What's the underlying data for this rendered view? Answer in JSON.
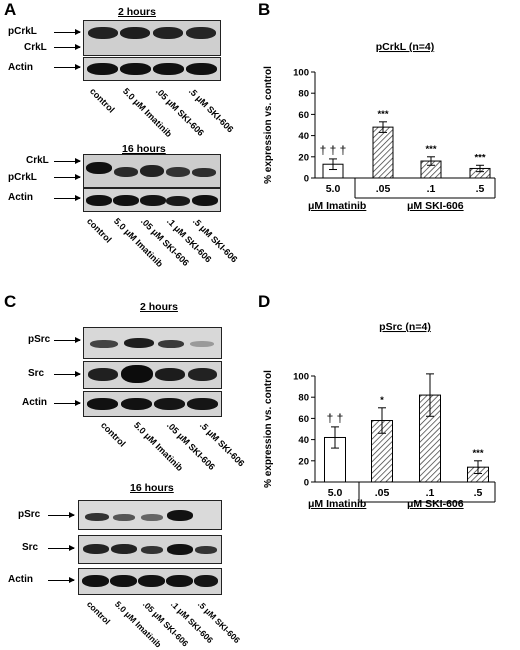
{
  "panel_A": {
    "letter": "A",
    "blot_2h": {
      "time_label": "2 hours",
      "row_labels": [
        "pCrkL",
        "CrkL",
        "Actin"
      ],
      "lanes": [
        "control",
        "5.0 μM Imatinib",
        ".05 μM SKI-606",
        ".5 μM SKI-606"
      ]
    },
    "blot_16h": {
      "time_label": "16 hours",
      "row_labels": [
        "CrkL",
        "pCrkL",
        "Actin"
      ],
      "lanes": [
        "control",
        "5.0 μM Imatinib",
        ".05 μM SKI-606",
        ".1 μM SKI-606",
        ".5 μM SKI-606"
      ]
    }
  },
  "panel_B": {
    "letter": "B",
    "group_labels": [
      "μM Imatinib",
      "μM SKI-606"
    ]
  },
  "panel_C": {
    "letter": "C",
    "blot_2h": {
      "time_label": "2 hours",
      "row_labels": [
        "pSrc",
        "Src",
        "Actin"
      ],
      "lanes": [
        "control",
        "5.0 μM Imatinib",
        ".05 μM SKI-606",
        ".5 μM SKI-606"
      ]
    },
    "blot_16h": {
      "time_label": "16 hours",
      "row_labels": [
        "pSrc",
        "Src",
        "Actin"
      ],
      "lanes": [
        "control",
        "5.0 μM Imatinib",
        ".05 μM SKI-606",
        ".1 μM SKI-606",
        ".5 μM SKI-606"
      ]
    }
  },
  "panel_D": {
    "letter": "D",
    "group_labels": [
      "μM Imatinib",
      "μM SKI-606"
    ]
  },
  "chart_data": [
    {
      "type": "bar",
      "title": "pCrkL (n=4)",
      "ylabel": "% expression vs. control",
      "xlabel": "",
      "categories": [
        "5.0",
        ".05",
        ".1",
        ".5"
      ],
      "values": [
        13,
        48,
        16,
        9
      ],
      "errors": [
        5,
        5,
        4,
        3
      ],
      "annotations": [
        "† † †",
        "***",
        "***",
        "***"
      ],
      "ylim": [
        0,
        100
      ],
      "yticks": [
        0,
        20,
        40,
        60,
        80,
        100
      ],
      "bar_fill": [
        "white",
        "hatched",
        "hatched",
        "hatched"
      ]
    },
    {
      "type": "bar",
      "title": "pSrc (n=4)",
      "ylabel": "% expression vs. control",
      "xlabel": "",
      "categories": [
        "5.0",
        ".05",
        ".1",
        ".5"
      ],
      "values": [
        42,
        58,
        82,
        14
      ],
      "errors": [
        10,
        12,
        20,
        6
      ],
      "annotations": [
        "† †",
        "*",
        "",
        "***"
      ],
      "ylim": [
        0,
        100
      ],
      "yticks": [
        0,
        20,
        40,
        60,
        80,
        100
      ],
      "bar_fill": [
        "white",
        "hatched",
        "hatched",
        "hatched"
      ]
    }
  ]
}
